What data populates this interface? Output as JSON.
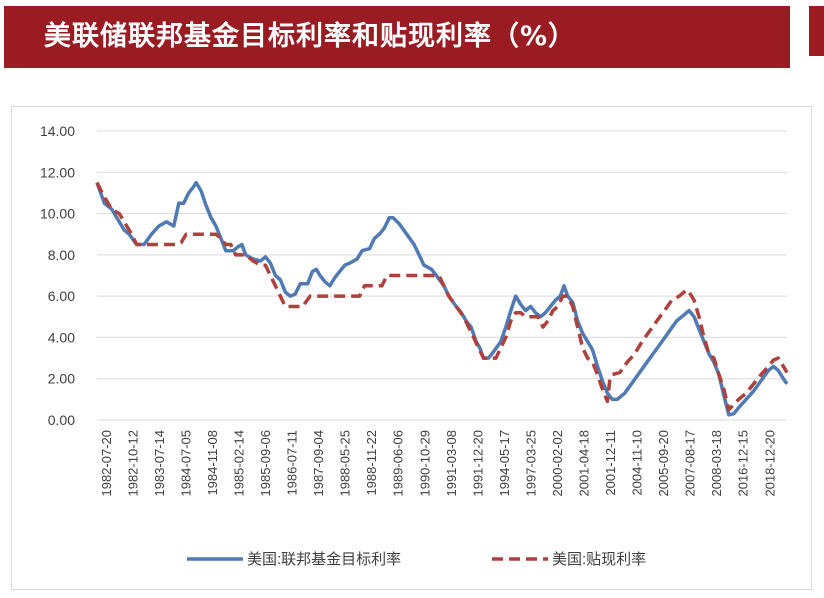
{
  "header": {
    "title": "美联储联邦基金目标利率和贴现利率（%）"
  },
  "colors": {
    "header_bg": "#9a1c22",
    "series_1": "#4f7ab3",
    "series_2": "#b0403c",
    "grid": "#d9d9d9"
  },
  "chart_data": {
    "type": "line",
    "title": "",
    "xlabel": "",
    "ylabel": "",
    "ylim": [
      0,
      14
    ],
    "y_ticks": [
      "14.00",
      "12.00",
      "10.00",
      "8.00",
      "6.00",
      "4.00",
      "2.00",
      "0.00"
    ],
    "categories": [
      "1982-07-20",
      "1982-10-12",
      "1983-07-14",
      "1984-07-05",
      "1984-11-08",
      "1985-02-14",
      "1985-09-06",
      "1986-07-11",
      "1987-09-04",
      "1988-05-25",
      "1988-11-22",
      "1989-06-06",
      "1990-10-29",
      "1991-03-08",
      "1991-12-20",
      "1994-05-17",
      "1997-03-25",
      "2000-02-02",
      "2001-04-18",
      "2001-12-11",
      "2004-11-10",
      "2005-09-20",
      "2007-08-17",
      "2008-03-18",
      "2016-12-15",
      "2018-12-20"
    ],
    "grid": "horizontal",
    "legend_position": "bottom",
    "series": [
      {
        "name": "美国:联邦基金目标利率",
        "style": "solid",
        "points": [
          [
            0,
            11.5
          ],
          [
            0.3,
            10.5
          ],
          [
            0.6,
            10.2
          ],
          [
            0.8,
            9.8
          ],
          [
            1.1,
            9.2
          ],
          [
            1.3,
            9.0
          ],
          [
            1.6,
            8.5
          ],
          [
            1.9,
            8.5
          ],
          [
            2.2,
            9.0
          ],
          [
            2.5,
            9.4
          ],
          [
            2.8,
            9.6
          ],
          [
            3.1,
            9.4
          ],
          [
            3.3,
            10.5
          ],
          [
            3.5,
            10.5
          ],
          [
            3.7,
            11.0
          ],
          [
            3.9,
            11.3
          ],
          [
            4.0,
            11.5
          ],
          [
            4.2,
            11.1
          ],
          [
            4.4,
            10.4
          ],
          [
            4.6,
            9.8
          ],
          [
            4.8,
            9.4
          ],
          [
            5.0,
            8.8
          ],
          [
            5.2,
            8.2
          ],
          [
            5.5,
            8.2
          ],
          [
            5.7,
            8.4
          ],
          [
            5.85,
            8.5
          ],
          [
            6.0,
            8.0
          ],
          [
            6.3,
            7.8
          ],
          [
            6.6,
            7.7
          ],
          [
            6.8,
            7.9
          ],
          [
            7.0,
            7.6
          ],
          [
            7.2,
            7.0
          ],
          [
            7.4,
            6.8
          ],
          [
            7.6,
            6.2
          ],
          [
            7.8,
            6.0
          ],
          [
            8.0,
            6.1
          ],
          [
            8.2,
            6.6
          ],
          [
            8.5,
            6.6
          ],
          [
            8.7,
            7.2
          ],
          [
            8.85,
            7.3
          ],
          [
            9.0,
            7.0
          ],
          [
            9.2,
            6.7
          ],
          [
            9.4,
            6.5
          ],
          [
            9.6,
            6.9
          ],
          [
            9.8,
            7.2
          ],
          [
            10.0,
            7.5
          ],
          [
            10.2,
            7.6
          ],
          [
            10.5,
            7.8
          ],
          [
            10.7,
            8.2
          ],
          [
            11.0,
            8.3
          ],
          [
            11.2,
            8.8
          ],
          [
            11.4,
            9.0
          ],
          [
            11.6,
            9.3
          ],
          [
            11.8,
            9.8
          ],
          [
            11.95,
            9.8
          ],
          [
            12.2,
            9.5
          ],
          [
            12.5,
            9.0
          ],
          [
            12.8,
            8.5
          ],
          [
            13.0,
            8.0
          ],
          [
            13.2,
            7.5
          ],
          [
            13.5,
            7.3
          ],
          [
            13.7,
            7.0
          ],
          [
            14.0,
            6.5
          ],
          [
            14.2,
            6.0
          ],
          [
            14.5,
            5.5
          ],
          [
            14.7,
            5.2
          ],
          [
            14.9,
            4.8
          ],
          [
            15.1,
            4.5
          ],
          [
            15.3,
            3.8
          ],
          [
            15.45,
            3.5
          ],
          [
            15.6,
            3.0
          ],
          [
            15.8,
            3.0
          ],
          [
            16.0,
            3.3
          ],
          [
            16.3,
            3.8
          ],
          [
            16.5,
            4.5
          ],
          [
            16.7,
            5.3
          ],
          [
            16.9,
            6.0
          ],
          [
            17.1,
            5.6
          ],
          [
            17.3,
            5.3
          ],
          [
            17.5,
            5.5
          ],
          [
            17.7,
            5.2
          ],
          [
            17.9,
            5.0
          ],
          [
            18.1,
            5.2
          ],
          [
            18.3,
            5.5
          ],
          [
            18.5,
            5.8
          ],
          [
            18.7,
            6.0
          ],
          [
            18.85,
            6.5
          ],
          [
            19.0,
            6.0
          ],
          [
            19.2,
            5.7
          ],
          [
            19.4,
            4.8
          ],
          [
            19.6,
            4.2
          ],
          [
            19.8,
            3.8
          ],
          [
            20.0,
            3.4
          ],
          [
            20.2,
            2.6
          ],
          [
            20.4,
            1.9
          ],
          [
            20.6,
            1.3
          ],
          [
            20.8,
            1.0
          ],
          [
            21.0,
            1.0
          ],
          [
            21.3,
            1.3
          ],
          [
            21.6,
            1.8
          ],
          [
            21.9,
            2.3
          ],
          [
            22.2,
            2.8
          ],
          [
            22.5,
            3.3
          ],
          [
            22.8,
            3.8
          ],
          [
            23.1,
            4.3
          ],
          [
            23.4,
            4.8
          ],
          [
            23.7,
            5.1
          ],
          [
            23.9,
            5.3
          ],
          [
            24.1,
            5.0
          ],
          [
            24.3,
            4.4
          ],
          [
            24.5,
            3.8
          ],
          [
            24.7,
            3.2
          ],
          [
            24.9,
            2.8
          ],
          [
            25.1,
            2.2
          ],
          [
            25.3,
            1.2
          ],
          [
            25.5,
            0.25
          ],
          [
            25.7,
            0.3
          ],
          [
            25.9,
            0.6
          ],
          [
            26.2,
            1.0
          ],
          [
            26.5,
            1.4
          ],
          [
            26.8,
            1.9
          ],
          [
            27.1,
            2.4
          ],
          [
            27.3,
            2.6
          ],
          [
            27.5,
            2.4
          ],
          [
            27.7,
            2.0
          ],
          [
            27.85,
            1.75
          ]
        ]
      },
      {
        "name": "美国:贴现利率",
        "style": "dashed",
        "points": [
          [
            0,
            11.5
          ],
          [
            0.3,
            10.8
          ],
          [
            0.6,
            10.2
          ],
          [
            0.9,
            10.0
          ],
          [
            1.2,
            9.4
          ],
          [
            1.4,
            9.0
          ],
          [
            1.6,
            8.5
          ],
          [
            2.0,
            8.5
          ],
          [
            2.5,
            8.5
          ],
          [
            3.0,
            8.5
          ],
          [
            3.2,
            8.5
          ],
          [
            3.4,
            8.6
          ],
          [
            3.6,
            9.0
          ],
          [
            4.0,
            9.0
          ],
          [
            4.4,
            9.0
          ],
          [
            4.8,
            9.0
          ],
          [
            5.0,
            8.8
          ],
          [
            5.2,
            8.5
          ],
          [
            5.4,
            8.5
          ],
          [
            5.6,
            8.0
          ],
          [
            6.0,
            8.0
          ],
          [
            6.3,
            7.7
          ],
          [
            6.6,
            7.5
          ],
          [
            6.8,
            7.5
          ],
          [
            7.0,
            7.0
          ],
          [
            7.2,
            6.5
          ],
          [
            7.4,
            6.0
          ],
          [
            7.6,
            5.5
          ],
          [
            8.0,
            5.5
          ],
          [
            8.3,
            5.5
          ],
          [
            8.6,
            6.0
          ],
          [
            9.0,
            6.0
          ],
          [
            9.3,
            6.0
          ],
          [
            9.6,
            6.0
          ],
          [
            10.0,
            6.0
          ],
          [
            10.3,
            6.0
          ],
          [
            10.6,
            6.0
          ],
          [
            10.8,
            6.5
          ],
          [
            11.2,
            6.5
          ],
          [
            11.5,
            6.5
          ],
          [
            11.7,
            7.0
          ],
          [
            12.0,
            7.0
          ],
          [
            12.5,
            7.0
          ],
          [
            13.0,
            7.0
          ],
          [
            13.5,
            7.0
          ],
          [
            13.8,
            7.0
          ],
          [
            14.0,
            6.5
          ],
          [
            14.2,
            6.0
          ],
          [
            14.5,
            5.5
          ],
          [
            14.8,
            5.0
          ],
          [
            15.0,
            4.5
          ],
          [
            15.2,
            4.0
          ],
          [
            15.4,
            3.5
          ],
          [
            15.6,
            3.0
          ],
          [
            15.8,
            3.0
          ],
          [
            16.1,
            3.0
          ],
          [
            16.3,
            3.5
          ],
          [
            16.5,
            4.0
          ],
          [
            16.7,
            4.8
          ],
          [
            16.9,
            5.2
          ],
          [
            17.1,
            5.2
          ],
          [
            17.3,
            5.0
          ],
          [
            17.5,
            5.0
          ],
          [
            17.8,
            5.0
          ],
          [
            18.0,
            4.5
          ],
          [
            18.2,
            4.8
          ],
          [
            18.4,
            5.3
          ],
          [
            18.6,
            5.5
          ],
          [
            18.8,
            6.0
          ],
          [
            19.0,
            6.0
          ],
          [
            19.2,
            5.5
          ],
          [
            19.4,
            4.5
          ],
          [
            19.6,
            3.5
          ],
          [
            19.8,
            3.0
          ],
          [
            20.0,
            2.8
          ],
          [
            20.2,
            2.2
          ],
          [
            20.4,
            1.5
          ],
          [
            20.6,
            0.9
          ],
          [
            20.7,
            2.0
          ],
          [
            20.8,
            2.2
          ],
          [
            21.1,
            2.3
          ],
          [
            21.4,
            2.8
          ],
          [
            21.7,
            3.2
          ],
          [
            22.0,
            3.8
          ],
          [
            22.3,
            4.3
          ],
          [
            22.6,
            4.8
          ],
          [
            22.9,
            5.3
          ],
          [
            23.2,
            5.8
          ],
          [
            23.5,
            6.0
          ],
          [
            23.8,
            6.3
          ],
          [
            23.9,
            6.2
          ],
          [
            24.1,
            5.8
          ],
          [
            24.3,
            5.0
          ],
          [
            24.5,
            4.0
          ],
          [
            24.7,
            3.2
          ],
          [
            24.9,
            3.0
          ],
          [
            25.1,
            2.2
          ],
          [
            25.3,
            1.5
          ],
          [
            25.5,
            0.5
          ],
          [
            25.7,
            0.75
          ],
          [
            25.9,
            1.0
          ],
          [
            26.2,
            1.3
          ],
          [
            26.5,
            1.75
          ],
          [
            26.8,
            2.2
          ],
          [
            27.1,
            2.6
          ],
          [
            27.3,
            2.9
          ],
          [
            27.5,
            3.0
          ],
          [
            27.7,
            2.6
          ],
          [
            27.85,
            2.3
          ]
        ]
      }
    ]
  }
}
